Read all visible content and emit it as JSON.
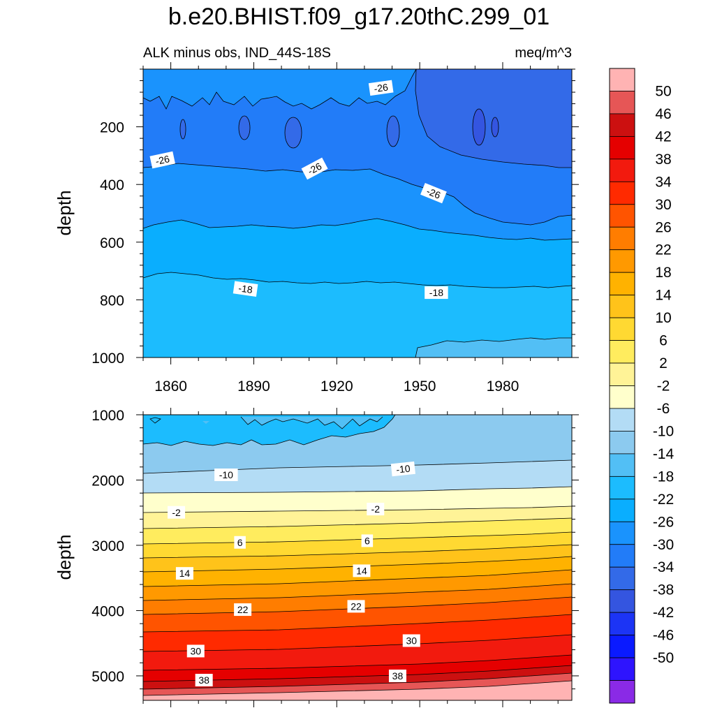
{
  "title": "b.e20.BHIST.f09_g17.20thC.299_01",
  "subtitle_left": "ALK minus obs, IND_44S-18S",
  "subtitle_right": "meq/m^3",
  "chart_data": [
    {
      "type": "contour",
      "panel": "top",
      "ylabel": "depth",
      "x_range": [
        1850,
        2005
      ],
      "y_range": [
        0,
        1000
      ],
      "y_reversed": true,
      "x_ticks": [
        1860,
        1890,
        1920,
        1950,
        1980
      ],
      "x_tick_labels": [
        "1860",
        "1890",
        "1920",
        "1950",
        "1980"
      ],
      "y_ticks": [
        200,
        400,
        600,
        800,
        1000
      ],
      "y_tick_labels": [
        "200",
        "400",
        "600",
        "800",
        "1000"
      ],
      "contour_interval": 4,
      "contour_labels": [
        {
          "text": "-26",
          "x": 1857,
          "y": 315,
          "angle": -12
        },
        {
          "text": "-26",
          "x": 1912,
          "y": 345,
          "angle": -28
        },
        {
          "text": "-26",
          "x": 1936,
          "y": 65,
          "angle": -8
        },
        {
          "text": "-26",
          "x": 1955,
          "y": 430,
          "angle": 22
        },
        {
          "text": "-18",
          "x": 1887,
          "y": 762,
          "angle": 8
        },
        {
          "text": "-18",
          "x": 1956,
          "y": 775,
          "angle": 0
        }
      ]
    },
    {
      "type": "contour",
      "panel": "bottom",
      "ylabel": "depth",
      "x_range": [
        1850,
        2005
      ],
      "y_range": [
        1000,
        5375
      ],
      "y_reversed": true,
      "x_ticks": [
        1860,
        1890,
        1920,
        1950,
        1980
      ],
      "y_ticks": [
        1000,
        2000,
        3000,
        4000,
        5000
      ],
      "y_tick_labels": [
        "1000",
        "2000",
        "3000",
        "4000",
        "5000"
      ],
      "contour_interval": 4,
      "contour_labels": [
        {
          "text": "-10",
          "x": 1880,
          "y": 1920,
          "angle": 0
        },
        {
          "text": "-10",
          "x": 1944,
          "y": 1830,
          "angle": -6
        },
        {
          "text": "-2",
          "x": 1862,
          "y": 2495,
          "angle": 0
        },
        {
          "text": "-2",
          "x": 1934,
          "y": 2445,
          "angle": 0
        },
        {
          "text": "6",
          "x": 1885,
          "y": 2955,
          "angle": 0
        },
        {
          "text": "6",
          "x": 1931,
          "y": 2930,
          "angle": 0
        },
        {
          "text": "14",
          "x": 1865,
          "y": 3430,
          "angle": 0
        },
        {
          "text": "14",
          "x": 1929,
          "y": 3390,
          "angle": 0
        },
        {
          "text": "22",
          "x": 1886,
          "y": 3985,
          "angle": 0
        },
        {
          "text": "22",
          "x": 1927,
          "y": 3935,
          "angle": 0
        },
        {
          "text": "30",
          "x": 1869,
          "y": 4620,
          "angle": 0
        },
        {
          "text": "30",
          "x": 1947,
          "y": 4460,
          "angle": 0
        },
        {
          "text": "38",
          "x": 1872,
          "y": 5065,
          "angle": 0
        },
        {
          "text": "38",
          "x": 1942,
          "y": 5000,
          "angle": 0
        }
      ]
    }
  ],
  "colorbar": {
    "labels": [
      "50",
      "46",
      "42",
      "38",
      "34",
      "30",
      "26",
      "22",
      "18",
      "14",
      "10",
      "6",
      "2",
      "-2",
      "-6",
      "-10",
      "-14",
      "-18",
      "-22",
      "-26",
      "-30",
      "-34",
      "-38",
      "-42",
      "-46",
      "-50"
    ],
    "colors": [
      "#ffb3b3",
      "#e65656",
      "#cc1010",
      "#e50000",
      "#f21a0e",
      "#ff2a00",
      "#ff5400",
      "#ff7d00",
      "#ff9900",
      "#ffb200",
      "#ffc31a",
      "#ffd932",
      "#ffec5e",
      "#fff397",
      "#ffffcc",
      "#b3dcf5",
      "#8ccaef",
      "#52bff5",
      "#1cbcfe",
      "#0aaefe",
      "#1a93fd",
      "#227cf8",
      "#336ae8",
      "#3455e0",
      "#1c34f5",
      "#0a1aff",
      "#2e14fe",
      "#8a2ae6"
    ]
  }
}
